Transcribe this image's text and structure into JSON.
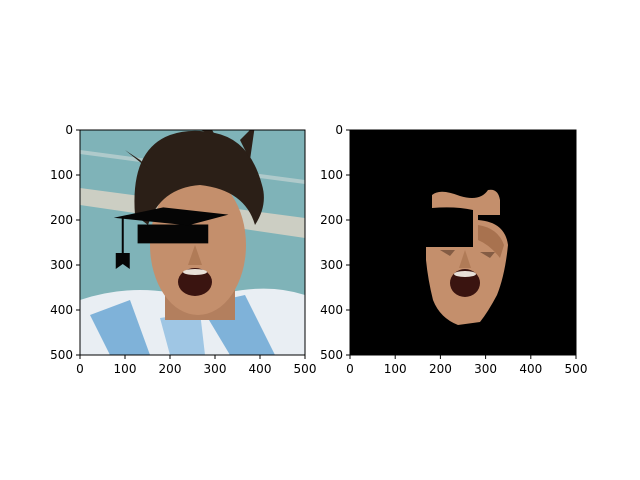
{
  "chart_data": [
    {
      "type": "image",
      "panel": "left",
      "content": "photo of a shouting man with a black graduation cap overlay drawn across his face",
      "xlim": [
        0,
        500
      ],
      "ylim": [
        500,
        0
      ],
      "xticks": [
        0,
        100,
        200,
        300,
        400,
        500
      ],
      "yticks": [
        0,
        100,
        200,
        300,
        400,
        500
      ],
      "xtick_labels": [
        "0",
        "100",
        "200",
        "300",
        "400",
        "500"
      ],
      "ytick_labels": [
        "0",
        "100",
        "200",
        "300",
        "400",
        "500"
      ],
      "overlay": {
        "shape": "graduation-cap",
        "board": [
          [
            75,
            195
          ],
          [
            185,
            172
          ],
          [
            330,
            188
          ],
          [
            240,
            212
          ]
        ],
        "band": [
          [
            128,
            210
          ],
          [
            285,
            210
          ],
          [
            285,
            252
          ],
          [
            128,
            252
          ]
        ],
        "tassel_x": 95,
        "tassel_y_range": [
          195,
          300
        ]
      }
    },
    {
      "type": "image",
      "panel": "right",
      "content": "face cutout on black background with the cap region masked out",
      "xlim": [
        0,
        500
      ],
      "ylim": [
        500,
        0
      ],
      "xticks": [
        0,
        100,
        200,
        300,
        400,
        500
      ],
      "yticks": [
        0,
        100,
        200,
        300,
        400,
        500
      ],
      "xtick_labels": [
        "0",
        "100",
        "200",
        "300",
        "400",
        "500"
      ],
      "ytick_labels": [
        "0",
        "100",
        "200",
        "300",
        "400",
        "500"
      ],
      "background": "#000000"
    }
  ],
  "colors": {
    "skin": "#c48f6c",
    "hair": "#2b1f17",
    "background_left": "#7fb3b8",
    "shirt_white": "#e9eef3",
    "shirt_blue": "#7fb2d9",
    "cap": "#050505"
  }
}
